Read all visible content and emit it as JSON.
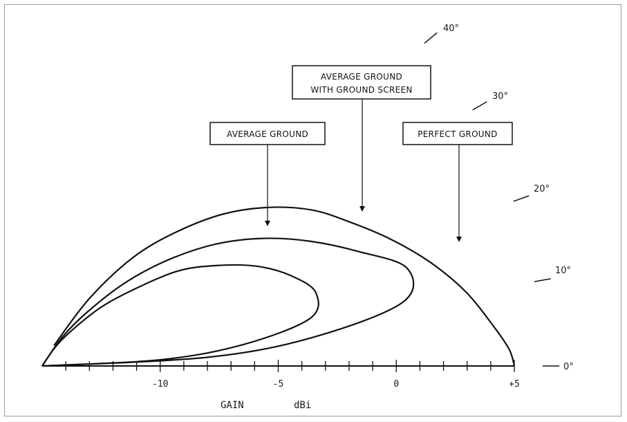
{
  "chart_data": {
    "type": "polar-elevation-pattern",
    "title": "",
    "xlabel": "GAIN",
    "xunit": "dBi",
    "xlim": [
      -15,
      5
    ],
    "x_ticks": [
      {
        "value": -10,
        "label": "-10"
      },
      {
        "value": -5,
        "label": "-5"
      },
      {
        "value": 0,
        "label": "0"
      },
      {
        "value": 5,
        "label": "+5"
      }
    ],
    "angle_labels": [
      {
        "deg": 40,
        "label": "40°"
      },
      {
        "deg": 30,
        "label": "30°"
      },
      {
        "deg": 20,
        "label": "20°"
      },
      {
        "deg": 10,
        "label": "10°"
      },
      {
        "deg": 0,
        "label": "0°"
      }
    ],
    "series": [
      {
        "name": "PERFECT GROUND",
        "points": [
          [
            0,
            5.0
          ],
          [
            2,
            4.8
          ],
          [
            5,
            4.2
          ],
          [
            10,
            3.2
          ],
          [
            15,
            2.0
          ],
          [
            20,
            0.7
          ],
          [
            25,
            -0.6
          ],
          [
            30,
            -1.8
          ],
          [
            35,
            -3.3
          ],
          [
            40,
            -5.0
          ],
          [
            45,
            -7.0
          ],
          [
            50,
            -9.0
          ],
          [
            55,
            -11.5
          ],
          [
            60,
            -14.0
          ]
        ]
      },
      {
        "name": "AVERAGE GROUND WITH GROUND SCREEN",
        "points": [
          [
            0.5,
            -15
          ],
          [
            3,
            -8
          ],
          [
            6,
            -3.5
          ],
          [
            10,
            0.5
          ],
          [
            15,
            1.0
          ],
          [
            20,
            -0.8
          ],
          [
            25,
            -2.5
          ],
          [
            30,
            -4.2
          ],
          [
            35,
            -6.0
          ],
          [
            40,
            -8.0
          ],
          [
            45,
            -10.0
          ],
          [
            50,
            -12.0
          ],
          [
            55,
            -13.5
          ],
          [
            60,
            -15.0
          ]
        ]
      },
      {
        "name": "AVERAGE GROUND",
        "points": [
          [
            0.5,
            -15
          ],
          [
            3,
            -10
          ],
          [
            6,
            -6.5
          ],
          [
            10,
            -3.5
          ],
          [
            15,
            -3.0
          ],
          [
            20,
            -3.8
          ],
          [
            25,
            -5.0
          ],
          [
            30,
            -6.5
          ],
          [
            35,
            -8.0
          ],
          [
            40,
            -10.0
          ],
          [
            45,
            -11.5
          ],
          [
            50,
            -13.0
          ],
          [
            55,
            -14.0
          ],
          [
            60,
            -15.0
          ]
        ]
      }
    ]
  },
  "callouts": {
    "average_ground": "AVERAGE GROUND",
    "screen_line1": "AVERAGE GROUND",
    "screen_line2": "WITH GROUND SCREEN",
    "perfect_ground": "PERFECT GROUND"
  },
  "colors": {
    "ink": "#111111",
    "frame": "#9a9a9a"
  }
}
